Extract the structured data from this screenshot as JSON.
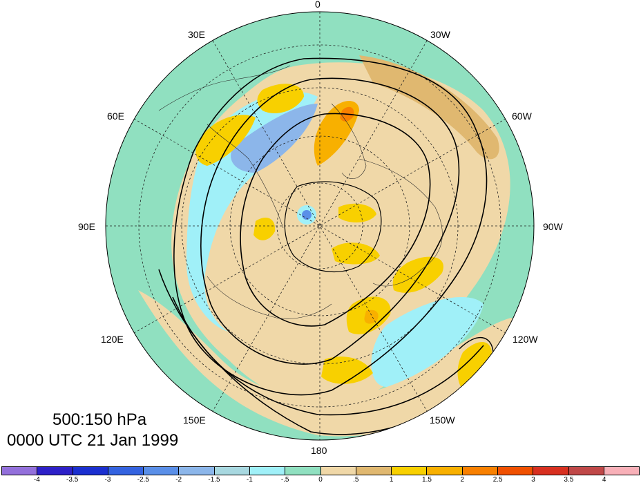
{
  "plot": {
    "level": "500:150 hPa",
    "time": "0000 UTC 21 Jan 1999"
  },
  "longitude_labels": {
    "lon_0": "0",
    "lon_30e": "30E",
    "lon_30w": "30W",
    "lon_60e": "60E",
    "lon_60w": "60W",
    "lon_90e": "90E",
    "lon_90w": "90W",
    "lon_120e": "120E",
    "lon_120w": "120W",
    "lon_150e": "150E",
    "lon_150w": "150W",
    "lon_180": "180"
  },
  "colorbar": {
    "colors": [
      "#9370db",
      "#2d20c8",
      "#1a2fd0",
      "#3463e0",
      "#5a8fe8",
      "#8cb6ea",
      "#a8d8e0",
      "#a0f0f8",
      "#90e0c0",
      "#f0d8a8",
      "#e0b870",
      "#f8d000",
      "#f8b000",
      "#f88000",
      "#f05000",
      "#d83020",
      "#c04848",
      "#f8b0b8"
    ],
    "labels": [
      "-4",
      "-3.5",
      "-3",
      "-2.5",
      "-2",
      "-1.5",
      "-1",
      "-.5",
      "0",
      ".5",
      "1",
      "1.5",
      "2",
      "2.5",
      "3",
      "3.5",
      "4"
    ]
  },
  "map_colors": {
    "green": "#90e0c0",
    "tan": "#f0d8a8",
    "dark_tan": "#e0b870",
    "yellow": "#f8d000",
    "orange": "#f8b000",
    "red_orange": "#f88000",
    "cyan": "#a0f0f8",
    "light_blue": "#8cb6ea",
    "blue": "#5a8fe8"
  }
}
